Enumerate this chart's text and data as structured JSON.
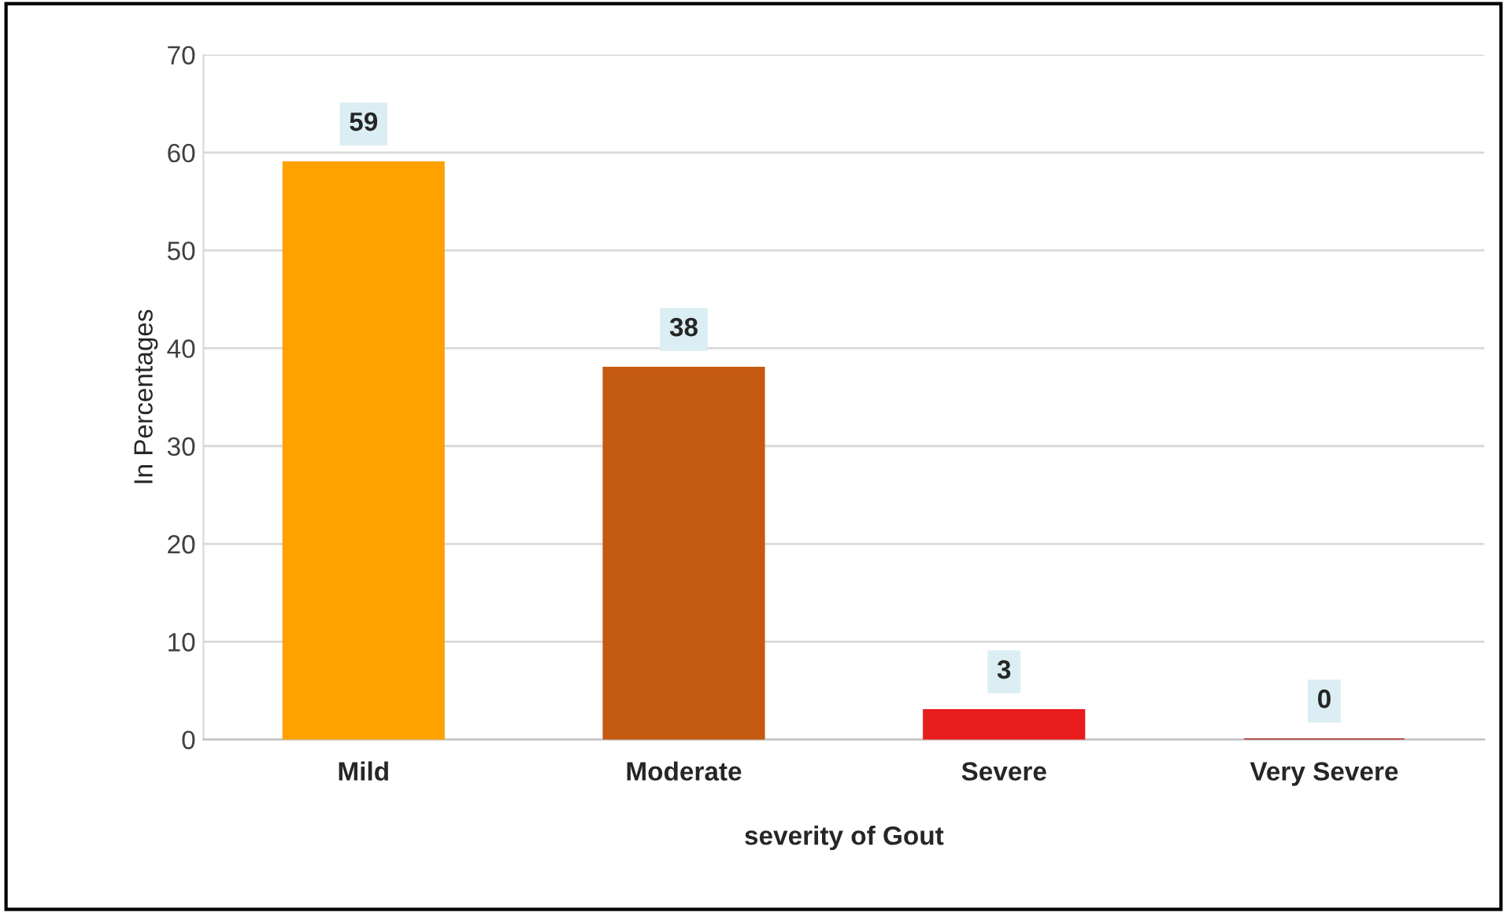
{
  "chart_data": {
    "type": "bar",
    "categories": [
      "Mild",
      "Moderate",
      "Severe",
      "Very Severe"
    ],
    "values": [
      59,
      38,
      3,
      0
    ],
    "colors": [
      "#ffa200",
      "#c55a11",
      "#e81c1c",
      "#b01010"
    ],
    "xlabel": "severity of Gout",
    "ylabel": "In Percentages",
    "ylim": [
      0,
      70
    ],
    "yticks": [
      0,
      10,
      20,
      30,
      40,
      50,
      60,
      70
    ],
    "grid": "y",
    "data_labels": true
  }
}
